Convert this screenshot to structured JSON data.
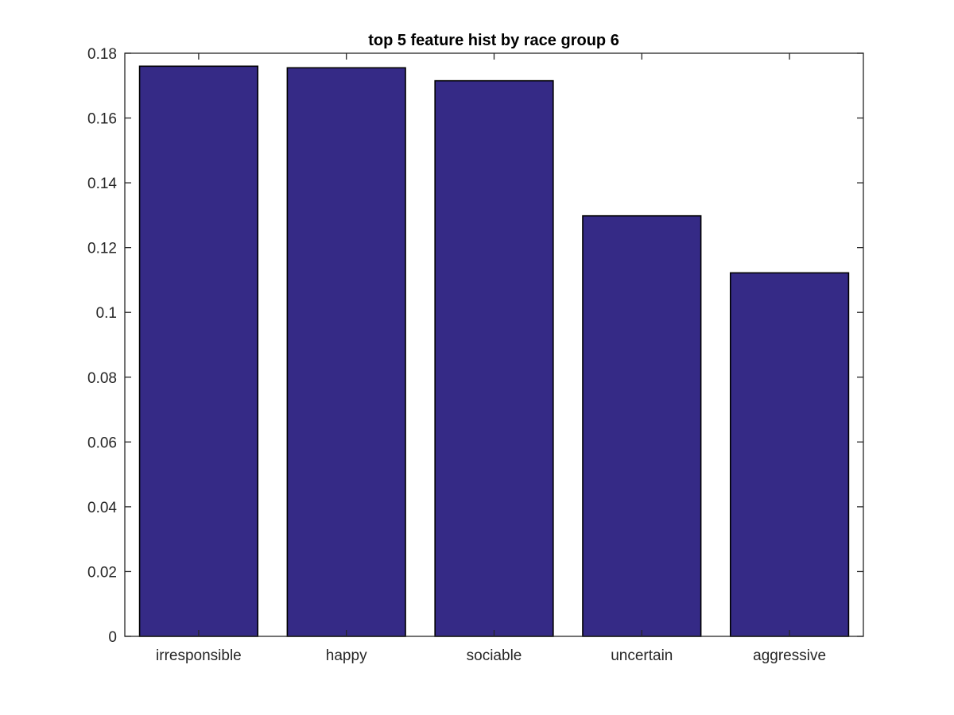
{
  "chart_data": {
    "type": "bar",
    "title": "top 5 feature hist by race group 6",
    "xlabel": "",
    "ylabel": "",
    "categories": [
      "irresponsible",
      "happy",
      "sociable",
      "uncertain",
      "aggressive"
    ],
    "values": [
      0.176,
      0.1755,
      0.1715,
      0.1298,
      0.1122
    ],
    "ylim": [
      0,
      0.18
    ],
    "yticks": [
      0,
      0.02,
      0.04,
      0.06,
      0.08,
      0.1,
      0.12,
      0.14,
      0.16,
      0.18
    ],
    "ytick_labels": [
      "0",
      "0.02",
      "0.04",
      "0.06",
      "0.08",
      "0.1",
      "0.12",
      "0.14",
      "0.16",
      "0.18"
    ],
    "grid": false,
    "legend": "none",
    "colors": {
      "bar_fill": "#352a86",
      "bar_edge": "#000000",
      "axis": "#262626",
      "text": "#262626"
    }
  }
}
